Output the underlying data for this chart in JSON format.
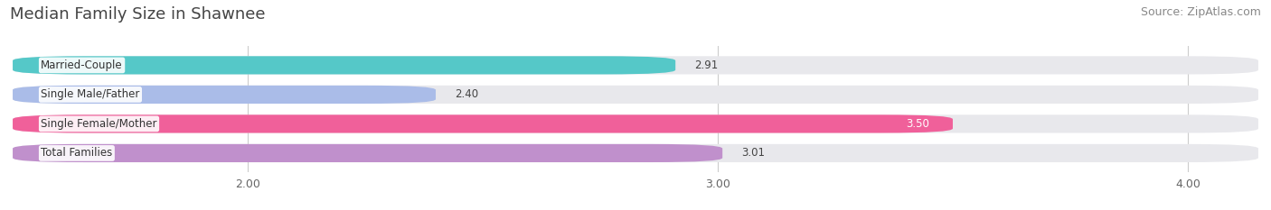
{
  "title": "Median Family Size in Shawnee",
  "source": "Source: ZipAtlas.com",
  "categories": [
    "Married-Couple",
    "Single Male/Father",
    "Single Female/Mother",
    "Total Families"
  ],
  "values": [
    2.91,
    2.4,
    3.5,
    3.01
  ],
  "bar_colors": [
    "#55C8C8",
    "#AABCE8",
    "#F0609A",
    "#C090CC"
  ],
  "bar_bg_color": "#E8E8EC",
  "xlim_min": 1.5,
  "xlim_max": 4.15,
  "xstart": 1.5,
  "xticks": [
    2.0,
    3.0,
    4.0
  ],
  "xtick_labels": [
    "2.00",
    "3.00",
    "4.00"
  ],
  "title_fontsize": 13,
  "source_fontsize": 9,
  "label_fontsize": 8.5,
  "value_fontsize": 8.5,
  "bar_height": 0.62,
  "background_color": "#FFFFFF",
  "value_label_white": [
    false,
    false,
    true,
    false
  ]
}
